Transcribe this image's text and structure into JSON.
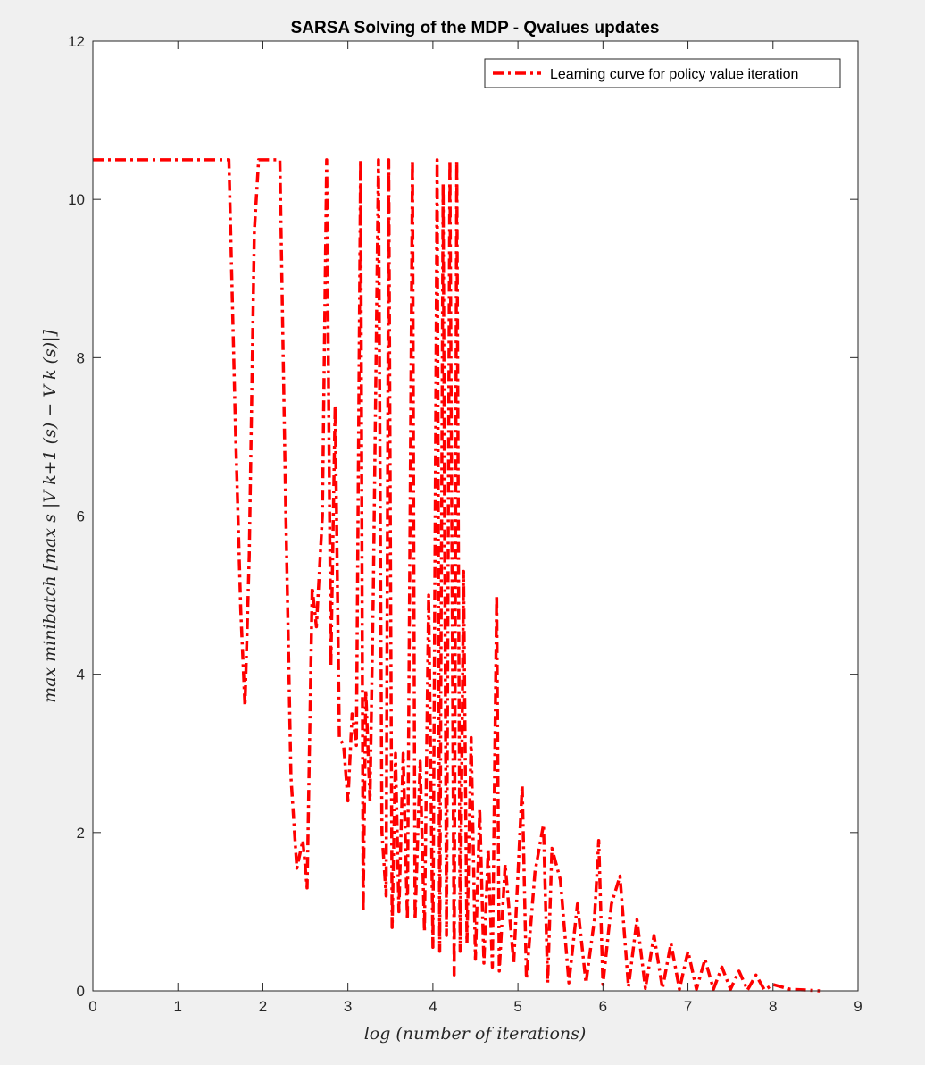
{
  "chart_data": {
    "type": "line",
    "title": "SARSA Solving of the MDP - Qvalues updates",
    "xlabel": "log (number of iterations)",
    "ylabel": "max_minibatch [max_s |V_{k+1}(s) − V_k(s)|]",
    "ylabel_display": "max minibatch [max s |V k+1 (s) − V k (s)|]",
    "xlim": [
      0,
      9
    ],
    "ylim": [
      0,
      12
    ],
    "xticks": [
      "0",
      "1",
      "2",
      "3",
      "4",
      "5",
      "6",
      "7",
      "8",
      "9"
    ],
    "yticks": [
      "0",
      "2",
      "4",
      "6",
      "8",
      "10",
      "12"
    ],
    "grid": false,
    "legend_position": "top-right",
    "series": [
      {
        "name": "Learning curve for policy value iteration",
        "color": "#ff0000",
        "line_style": "dash-dot",
        "x": [
          0,
          1.6,
          1.68,
          1.74,
          1.79,
          1.84,
          1.9,
          1.95,
          2.05,
          2.2,
          2.27,
          2.33,
          2.4,
          2.47,
          2.52,
          2.58,
          2.63,
          2.7,
          2.75,
          2.8,
          2.85,
          2.9,
          2.95,
          3.0,
          3.05,
          3.1,
          3.15,
          3.18,
          3.21,
          3.26,
          3.3,
          3.36,
          3.4,
          3.45,
          3.48,
          3.52,
          3.56,
          3.6,
          3.65,
          3.7,
          3.76,
          3.79,
          3.85,
          3.9,
          3.95,
          4.0,
          4.05,
          4.08,
          4.12,
          4.16,
          4.2,
          4.25,
          4.28,
          4.32,
          4.36,
          4.4,
          4.45,
          4.5,
          4.55,
          4.6,
          4.65,
          4.7,
          4.75,
          4.78,
          4.85,
          4.95,
          5.05,
          5.1,
          5.2,
          5.3,
          5.35,
          5.4,
          5.5,
          5.6,
          5.7,
          5.8,
          5.9,
          5.95,
          6.0,
          6.1,
          6.2,
          6.3,
          6.4,
          6.5,
          6.6,
          6.7,
          6.8,
          6.9,
          7.0,
          7.1,
          7.2,
          7.3,
          7.4,
          7.5,
          7.6,
          7.7,
          7.8,
          7.9,
          8.0,
          8.2,
          8.4,
          8.55
        ],
        "y": [
          10.5,
          10.5,
          7.0,
          4.8,
          3.6,
          5.5,
          9.6,
          10.5,
          10.5,
          10.5,
          6.0,
          2.7,
          1.55,
          1.9,
          1.3,
          5.1,
          4.6,
          6.0,
          10.5,
          4.1,
          7.4,
          3.2,
          3.1,
          2.4,
          3.5,
          3.1,
          10.5,
          1.0,
          3.8,
          2.4,
          5.1,
          10.5,
          2.0,
          1.2,
          10.5,
          0.8,
          3.0,
          1.0,
          3.0,
          0.9,
          10.5,
          0.9,
          2.9,
          0.75,
          5.0,
          0.55,
          10.5,
          0.5,
          10.2,
          0.7,
          10.5,
          0.2,
          10.5,
          0.5,
          5.3,
          0.6,
          3.2,
          0.4,
          2.3,
          0.35,
          1.8,
          0.3,
          5.0,
          0.25,
          1.6,
          0.35,
          2.6,
          0.15,
          1.5,
          2.1,
          0.1,
          1.8,
          1.4,
          0.1,
          1.1,
          0.1,
          0.9,
          1.9,
          0.08,
          1.1,
          1.45,
          0.05,
          0.9,
          0.03,
          0.7,
          0.03,
          0.6,
          0.02,
          0.5,
          0.02,
          0.4,
          0.02,
          0.3,
          0.02,
          0.25,
          0.01,
          0.2,
          0.01,
          0.08,
          0.02,
          0.01,
          0.0
        ]
      }
    ]
  }
}
